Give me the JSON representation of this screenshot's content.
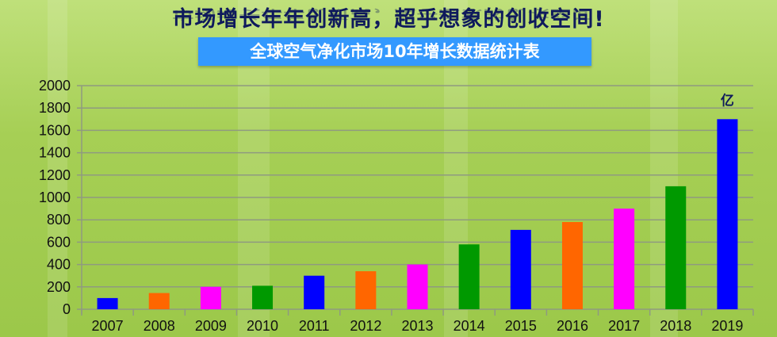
{
  "header": {
    "headline": "市场增长年年创新高，超乎想象的创收空间!",
    "subtitle": "全球空气净化市场10年增长数据统计表"
  },
  "chart_data": {
    "type": "bar",
    "title": "全球空气净化市场10年增长数据统计表",
    "categories": [
      "2007",
      "2008",
      "2009",
      "2010",
      "2011",
      "2012",
      "2013",
      "2014",
      "2015",
      "2016",
      "2017",
      "2018",
      "2019"
    ],
    "values": [
      100,
      145,
      200,
      210,
      300,
      340,
      400,
      580,
      710,
      780,
      900,
      1100,
      1700
    ],
    "colors": [
      "#0000ff",
      "#ff6600",
      "#ff00ff",
      "#009900",
      "#0000ff",
      "#ff6600",
      "#ff00ff",
      "#009900",
      "#0000ff",
      "#ff6600",
      "#ff00ff",
      "#009900",
      "#0000ff"
    ],
    "unit_label": "亿",
    "ylim": [
      0,
      2000
    ],
    "yticks": [
      0,
      200,
      400,
      600,
      800,
      1000,
      1200,
      1400,
      1600,
      1800,
      2000
    ],
    "grid": true,
    "xlabel": "",
    "ylabel": ""
  }
}
